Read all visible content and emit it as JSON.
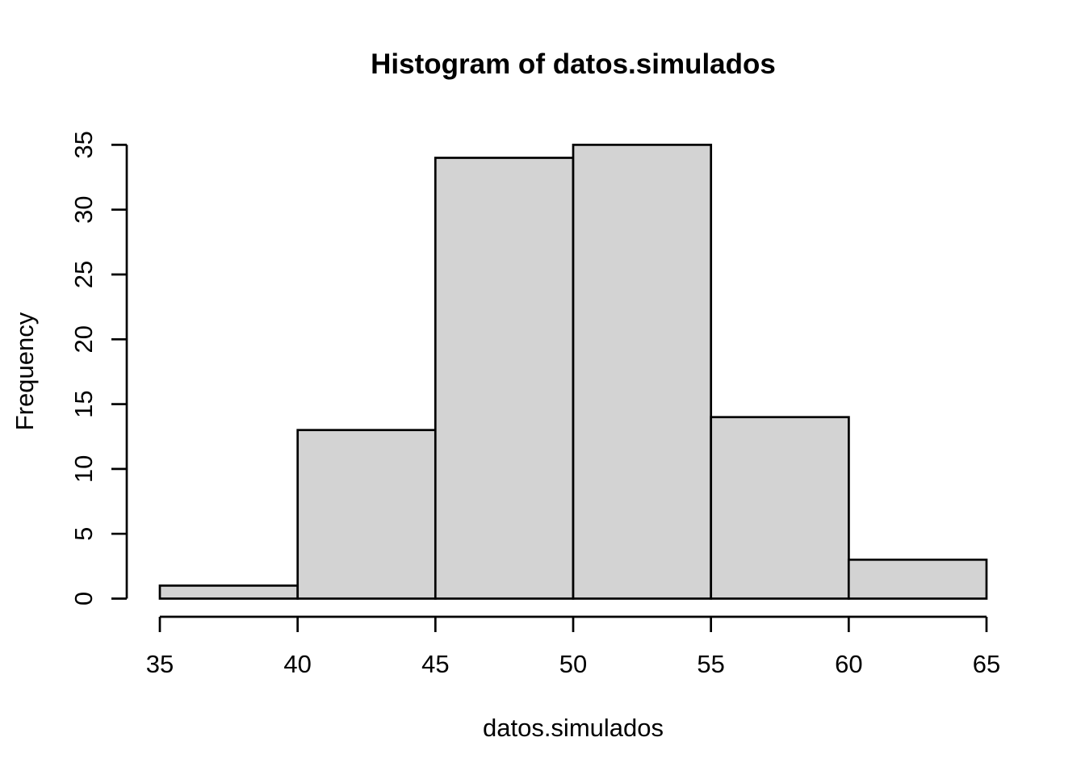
{
  "figure": {
    "background": "#FFFFFF"
  },
  "chart_data": {
    "type": "histogram",
    "title": "Histogram of datos.simulados",
    "xlabel": "datos.simulados",
    "ylabel": "Frequency",
    "bin_edges": [
      35,
      40,
      45,
      50,
      55,
      60,
      65
    ],
    "counts": [
      1,
      13,
      34,
      35,
      14,
      3
    ],
    "x_ticks": [
      35,
      40,
      45,
      50,
      55,
      60,
      65
    ],
    "y_ticks": [
      0,
      5,
      10,
      15,
      20,
      25,
      30,
      35
    ],
    "xlim": [
      35,
      65
    ],
    "ylim": [
      0,
      35
    ],
    "grid": false,
    "legend": "none",
    "bar_fill": "#D3D3D3",
    "bar_stroke": "#000000",
    "axis_color": "#000000",
    "text_color": "#000000"
  }
}
